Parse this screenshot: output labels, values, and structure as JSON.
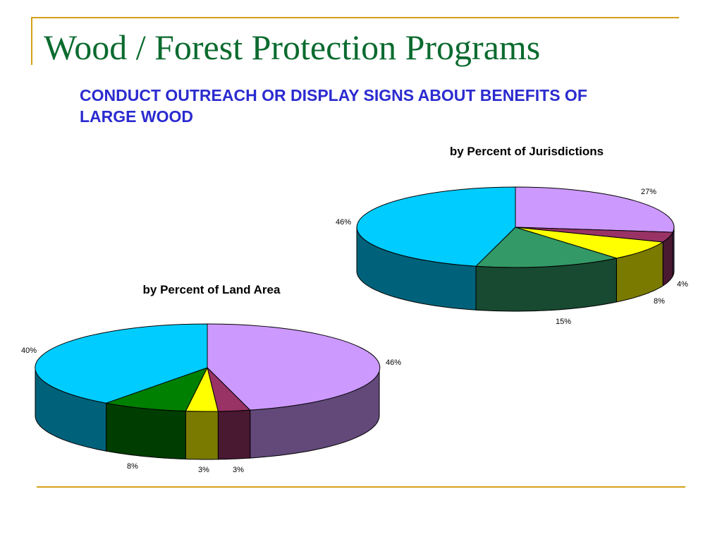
{
  "slide": {
    "title": "Wood / Forest Protection Programs",
    "subtitle": "CONDUCT OUTREACH OR DISPLAY SIGNS ABOUT BENEFITS OF LARGE WOOD"
  },
  "colors": {
    "frame": "#d4a017",
    "title": "#0b6b2f",
    "subtitle": "#2b2bd0"
  },
  "chart_data": [
    {
      "type": "pie",
      "title": "by Percent of Jurisdictions",
      "three_d": true,
      "slices": [
        {
          "label": "27%",
          "value": 27,
          "color": "#cc99ff"
        },
        {
          "label": "4%",
          "value": 4,
          "color": "#993366"
        },
        {
          "label": "8%",
          "value": 8,
          "color": "#ffff00"
        },
        {
          "label": "15%",
          "value": 15,
          "color": "#339966"
        },
        {
          "label": "46%",
          "value": 46,
          "color": "#00ccff"
        }
      ]
    },
    {
      "type": "pie",
      "title": "by Percent of Land Area",
      "three_d": true,
      "slices": [
        {
          "label": "46%",
          "value": 46,
          "color": "#cc99ff"
        },
        {
          "label": "3%",
          "value": 3,
          "color": "#993366"
        },
        {
          "label": "3%",
          "value": 3,
          "color": "#ffff00"
        },
        {
          "label": "8%",
          "value": 8,
          "color": "#008000"
        },
        {
          "label": "40%",
          "value": 40,
          "color": "#00ccff"
        }
      ]
    }
  ]
}
